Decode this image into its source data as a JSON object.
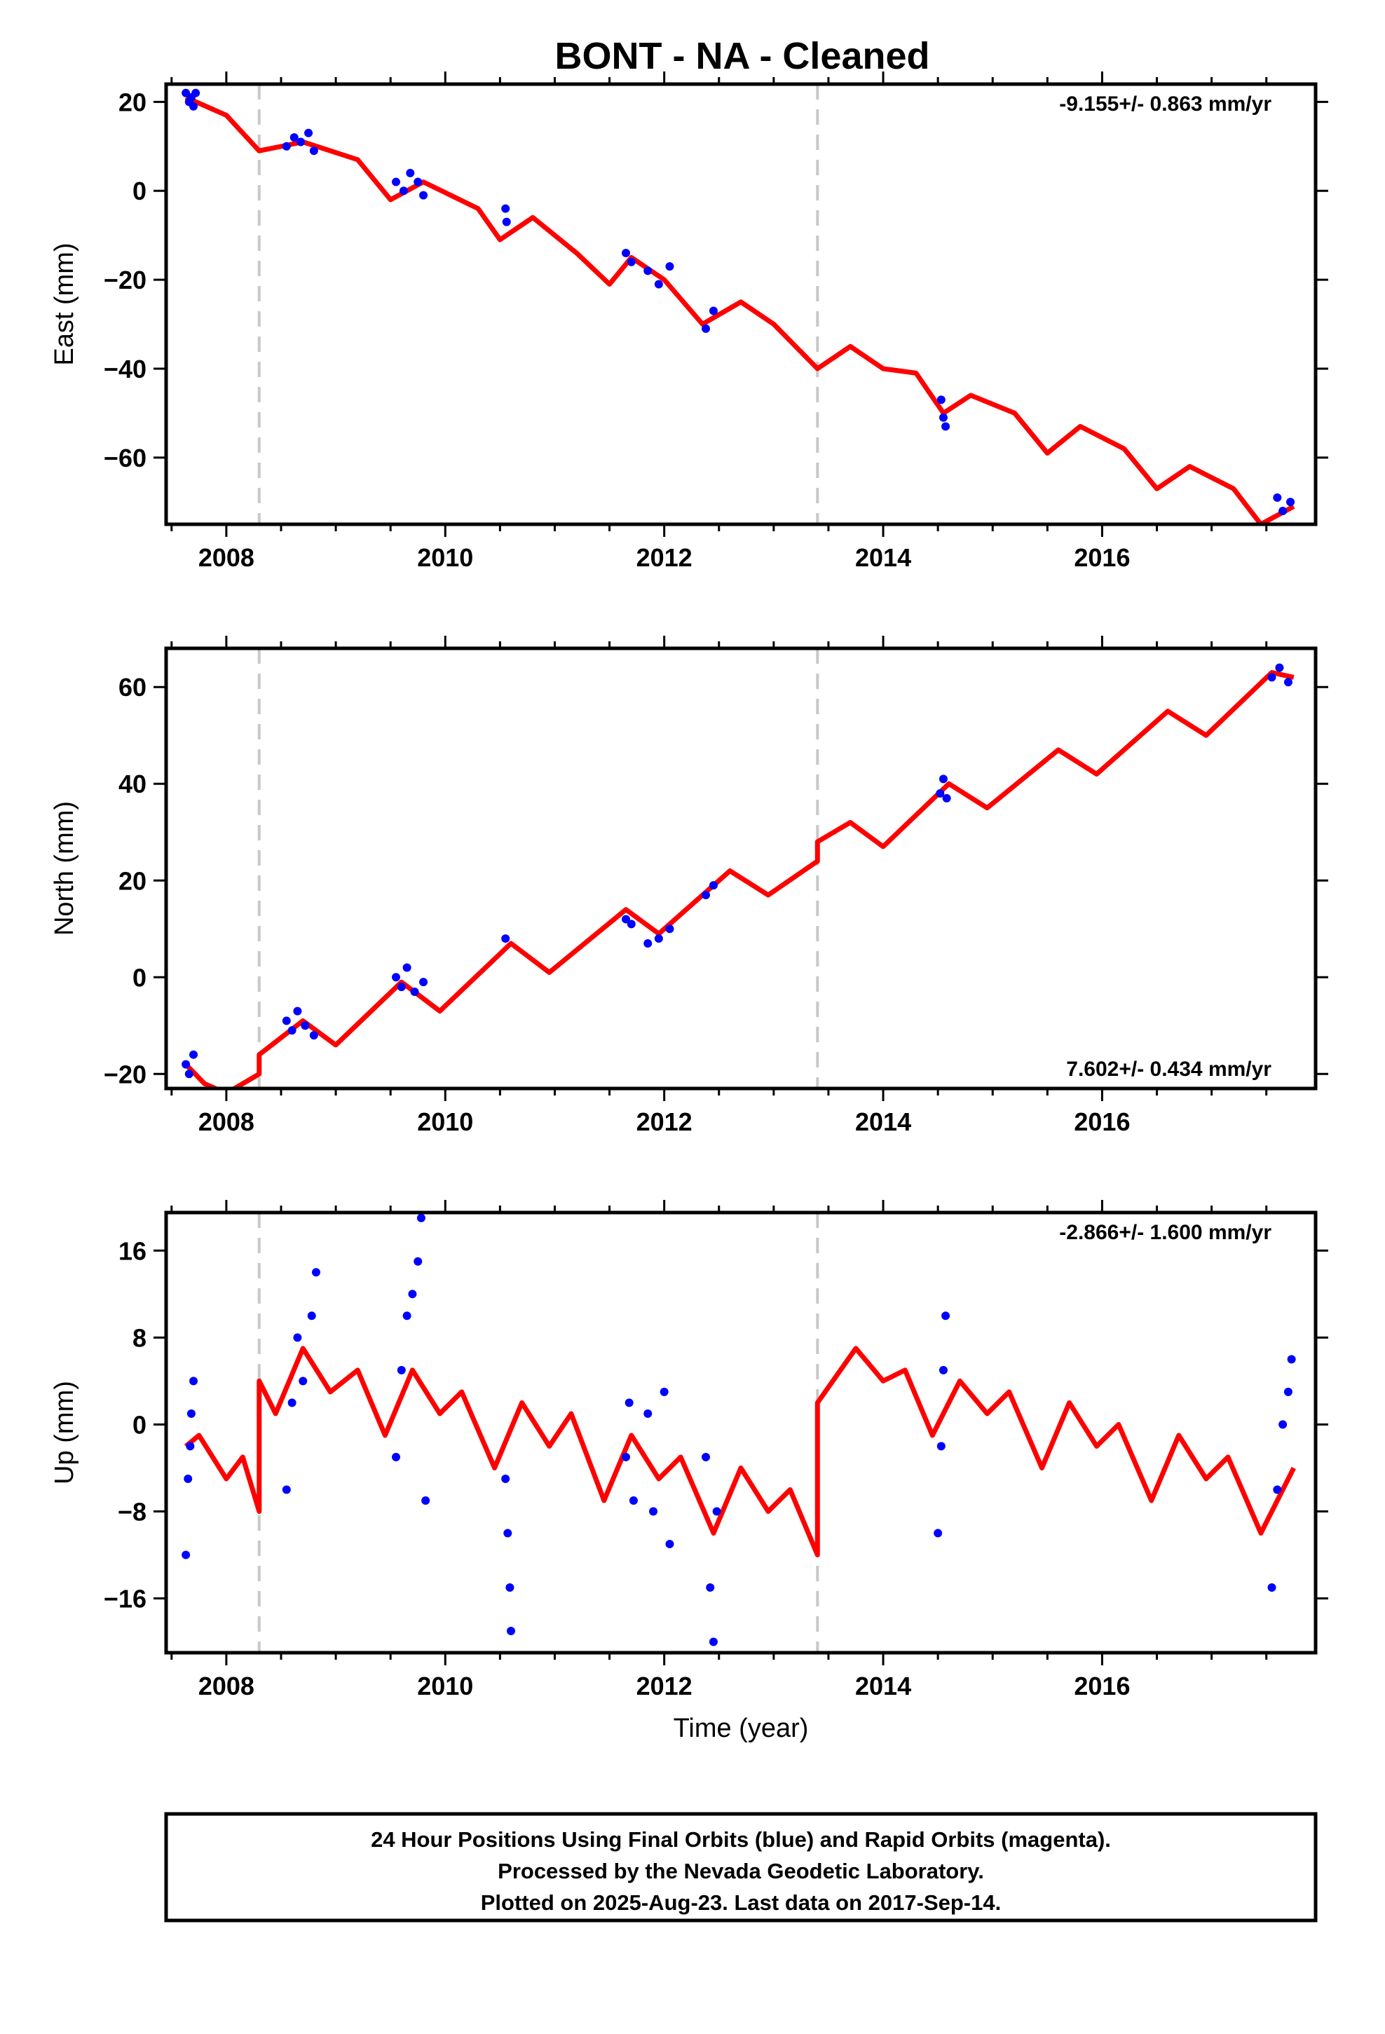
{
  "title": "BONT  - NA - Cleaned",
  "colors": {
    "data": "#0000ff",
    "model": "#ff0000",
    "offset": "#c8c8c8",
    "frame": "#000000"
  },
  "footer": {
    "line1": "24 Hour Positions Using Final Orbits (blue) and Rapid Orbits (magenta).",
    "line2": "Processed by the Nevada Geodetic Laboratory.",
    "line3": "Plotted on 2025-Aug-23. Last data on 2017-Sep-14."
  },
  "chart_data": [
    {
      "type": "scatter",
      "ylabel": "East (mm)",
      "xlabel": "",
      "rate": "-9.155+/- 0.863 mm/yr",
      "xlim": [
        2007.45,
        2017.95
      ],
      "ylim": [
        -75,
        24
      ],
      "xticks": [
        2008,
        2010,
        2012,
        2014,
        2016
      ],
      "yticks": [
        20,
        0,
        -20,
        -40,
        -60
      ],
      "offsets": [
        2008.3,
        2013.4
      ],
      "series": [
        {
          "points": [
            [
              2007.63,
              22
            ],
            [
              2007.66,
              20
            ],
            [
              2007.68,
              21
            ],
            [
              2007.7,
              19
            ],
            [
              2007.72,
              22
            ],
            [
              2008.55,
              10
            ],
            [
              2008.62,
              12
            ],
            [
              2008.68,
              11
            ],
            [
              2008.75,
              13
            ],
            [
              2008.8,
              9
            ],
            [
              2009.55,
              2
            ],
            [
              2009.62,
              0
            ],
            [
              2009.68,
              4
            ],
            [
              2009.75,
              2
            ],
            [
              2009.8,
              -1
            ],
            [
              2010.55,
              -4
            ],
            [
              2010.56,
              -7
            ],
            [
              2011.65,
              -14
            ],
            [
              2011.7,
              -16
            ],
            [
              2011.85,
              -18
            ],
            [
              2011.95,
              -21
            ],
            [
              2012.05,
              -17
            ],
            [
              2012.38,
              -31
            ],
            [
              2012.45,
              -27
            ],
            [
              2014.53,
              -47
            ],
            [
              2014.55,
              -51
            ],
            [
              2014.57,
              -53
            ],
            [
              2017.6,
              -69
            ],
            [
              2017.65,
              -72
            ],
            [
              2017.72,
              -70
            ]
          ]
        },
        {
          "model": [
            [
              2007.63,
              21
            ],
            [
              2008.0,
              17
            ],
            [
              2008.3,
              9
            ],
            [
              2008.7,
              11
            ],
            [
              2009.2,
              7
            ],
            [
              2009.5,
              -2
            ],
            [
              2009.8,
              2
            ],
            [
              2010.3,
              -4
            ],
            [
              2010.5,
              -11
            ],
            [
              2010.8,
              -6
            ],
            [
              2011.2,
              -14
            ],
            [
              2011.5,
              -21
            ],
            [
              2011.7,
              -15
            ],
            [
              2012.0,
              -20
            ],
            [
              2012.35,
              -30
            ],
            [
              2012.7,
              -25
            ],
            [
              2013.0,
              -30
            ],
            [
              2013.4,
              -40
            ],
            [
              2013.7,
              -35
            ],
            [
              2014.0,
              -40
            ],
            [
              2014.3,
              -41
            ],
            [
              2014.55,
              -50
            ],
            [
              2014.8,
              -46
            ],
            [
              2015.2,
              -50
            ],
            [
              2015.5,
              -59
            ],
            [
              2015.8,
              -53
            ],
            [
              2016.2,
              -58
            ],
            [
              2016.5,
              -67
            ],
            [
              2016.8,
              -62
            ],
            [
              2017.2,
              -67
            ],
            [
              2017.45,
              -75
            ],
            [
              2017.75,
              -71
            ]
          ]
        }
      ]
    },
    {
      "type": "scatter",
      "ylabel": "North (mm)",
      "xlabel": "",
      "rate": "7.602+/- 0.434 mm/yr",
      "xlim": [
        2007.45,
        2017.95
      ],
      "ylim": [
        -23,
        68
      ],
      "xticks": [
        2008,
        2010,
        2012,
        2014,
        2016
      ],
      "yticks": [
        60,
        40,
        20,
        0,
        -20
      ],
      "offsets": [
        2008.3,
        2013.4
      ],
      "series": [
        {
          "points": [
            [
              2007.63,
              -18
            ],
            [
              2007.66,
              -20
            ],
            [
              2007.7,
              -16
            ],
            [
              2008.55,
              -9
            ],
            [
              2008.6,
              -11
            ],
            [
              2008.65,
              -7
            ],
            [
              2008.72,
              -10
            ],
            [
              2008.8,
              -12
            ],
            [
              2009.55,
              0
            ],
            [
              2009.6,
              -2
            ],
            [
              2009.65,
              2
            ],
            [
              2009.72,
              -3
            ],
            [
              2009.8,
              -1
            ],
            [
              2010.55,
              8
            ],
            [
              2011.65,
              12
            ],
            [
              2011.7,
              11
            ],
            [
              2011.85,
              7
            ],
            [
              2011.95,
              8
            ],
            [
              2012.05,
              10
            ],
            [
              2012.38,
              17
            ],
            [
              2012.45,
              19
            ],
            [
              2014.52,
              38
            ],
            [
              2014.55,
              41
            ],
            [
              2014.58,
              37
            ],
            [
              2017.55,
              62
            ],
            [
              2017.62,
              64
            ],
            [
              2017.7,
              61
            ]
          ]
        },
        {
          "model": [
            [
              2007.63,
              -18
            ],
            [
              2007.8,
              -22
            ],
            [
              2008.0,
              -24
            ],
            [
              2008.3,
              -20
            ],
            [
              2008.3,
              -16
            ],
            [
              2008.7,
              -9
            ],
            [
              2009.0,
              -14
            ],
            [
              2009.6,
              -1
            ],
            [
              2009.95,
              -7
            ],
            [
              2010.6,
              7
            ],
            [
              2010.95,
              1
            ],
            [
              2011.65,
              14
            ],
            [
              2011.95,
              9
            ],
            [
              2012.6,
              22
            ],
            [
              2012.95,
              17
            ],
            [
              2013.4,
              24
            ],
            [
              2013.4,
              28
            ],
            [
              2013.7,
              32
            ],
            [
              2014.0,
              27
            ],
            [
              2014.6,
              40
            ],
            [
              2014.95,
              35
            ],
            [
              2015.6,
              47
            ],
            [
              2015.95,
              42
            ],
            [
              2016.6,
              55
            ],
            [
              2016.95,
              50
            ],
            [
              2017.55,
              63
            ],
            [
              2017.75,
              62
            ]
          ]
        }
      ]
    },
    {
      "type": "scatter",
      "ylabel": "Up (mm)",
      "xlabel": "Time (year)",
      "rate": "-2.866+/- 1.600 mm/yr",
      "xlim": [
        2007.45,
        2017.95
      ],
      "ylim": [
        -21,
        19.5
      ],
      "xticks": [
        2008,
        2010,
        2012,
        2014,
        2016
      ],
      "yticks": [
        16,
        8,
        0,
        -8,
        -16
      ],
      "offsets": [
        2008.3,
        2013.4
      ],
      "series": [
        {
          "points": [
            [
              2007.63,
              -12
            ],
            [
              2007.65,
              -5
            ],
            [
              2007.67,
              -2
            ],
            [
              2007.68,
              1
            ],
            [
              2007.7,
              4
            ],
            [
              2008.55,
              -6
            ],
            [
              2008.6,
              2
            ],
            [
              2008.65,
              8
            ],
            [
              2008.7,
              4
            ],
            [
              2008.78,
              10
            ],
            [
              2008.82,
              14
            ],
            [
              2009.55,
              -3
            ],
            [
              2009.6,
              5
            ],
            [
              2009.65,
              10
            ],
            [
              2009.7,
              12
            ],
            [
              2009.75,
              15
            ],
            [
              2009.78,
              19
            ],
            [
              2009.82,
              -7
            ],
            [
              2010.55,
              -5
            ],
            [
              2010.57,
              -10
            ],
            [
              2010.59,
              -15
            ],
            [
              2010.6,
              -19
            ],
            [
              2011.65,
              -3
            ],
            [
              2011.68,
              2
            ],
            [
              2011.72,
              -7
            ],
            [
              2011.85,
              1
            ],
            [
              2011.9,
              -8
            ],
            [
              2012.0,
              3
            ],
            [
              2012.05,
              -11
            ],
            [
              2012.38,
              -3
            ],
            [
              2012.42,
              -15
            ],
            [
              2012.45,
              -20
            ],
            [
              2012.48,
              -8
            ],
            [
              2014.5,
              -10
            ],
            [
              2014.53,
              -2
            ],
            [
              2014.55,
              5
            ],
            [
              2014.57,
              10
            ],
            [
              2017.55,
              -15
            ],
            [
              2017.6,
              -6
            ],
            [
              2017.65,
              0
            ],
            [
              2017.7,
              3
            ],
            [
              2017.73,
              6
            ]
          ]
        },
        {
          "model": [
            [
              2007.63,
              -2
            ],
            [
              2007.75,
              -1
            ],
            [
              2008.0,
              -5
            ],
            [
              2008.15,
              -3
            ],
            [
              2008.3,
              -8
            ],
            [
              2008.3,
              4
            ],
            [
              2008.45,
              1
            ],
            [
              2008.7,
              7
            ],
            [
              2008.95,
              3
            ],
            [
              2009.2,
              5
            ],
            [
              2009.45,
              -1
            ],
            [
              2009.7,
              5
            ],
            [
              2009.95,
              1
            ],
            [
              2010.15,
              3
            ],
            [
              2010.45,
              -4
            ],
            [
              2010.7,
              2
            ],
            [
              2010.95,
              -2
            ],
            [
              2011.15,
              1
            ],
            [
              2011.45,
              -7
            ],
            [
              2011.7,
              -1
            ],
            [
              2011.95,
              -5
            ],
            [
              2012.15,
              -3
            ],
            [
              2012.45,
              -10
            ],
            [
              2012.7,
              -4
            ],
            [
              2012.95,
              -8
            ],
            [
              2013.15,
              -6
            ],
            [
              2013.4,
              -12
            ],
            [
              2013.4,
              2
            ],
            [
              2013.75,
              7
            ],
            [
              2014.0,
              4
            ],
            [
              2014.2,
              5
            ],
            [
              2014.45,
              -1
            ],
            [
              2014.7,
              4
            ],
            [
              2014.95,
              1
            ],
            [
              2015.15,
              3
            ],
            [
              2015.45,
              -4
            ],
            [
              2015.7,
              2
            ],
            [
              2015.95,
              -2
            ],
            [
              2016.15,
              0
            ],
            [
              2016.45,
              -7
            ],
            [
              2016.7,
              -1
            ],
            [
              2016.95,
              -5
            ],
            [
              2017.15,
              -3
            ],
            [
              2017.45,
              -10
            ],
            [
              2017.75,
              -4
            ]
          ]
        }
      ]
    }
  ]
}
